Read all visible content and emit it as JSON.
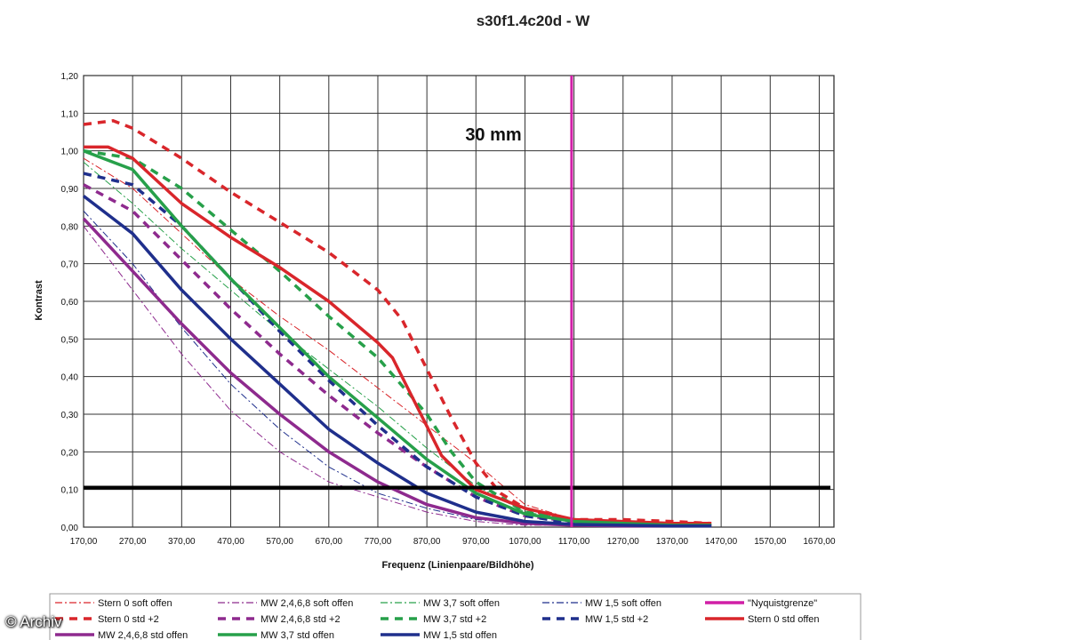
{
  "chart_data": {
    "type": "line",
    "title": "s30f1.4c20d - W",
    "annotation": "30 mm",
    "xlabel": "Frequenz (Linienpaare/Bildhöhe)",
    "ylabel": "Kontrast",
    "xlim": [
      170,
      1700
    ],
    "ylim": [
      0,
      1.2
    ],
    "x_ticks": [
      "170,00",
      "270,00",
      "370,00",
      "470,00",
      "570,00",
      "670,00",
      "770,00",
      "870,00",
      "970,00",
      "1070,00",
      "1170,00",
      "1270,00",
      "1370,00",
      "1470,00",
      "1570,00",
      "1670,00"
    ],
    "y_ticks": [
      "0,00",
      "0,10",
      "0,20",
      "0,30",
      "0,40",
      "0,50",
      "0,60",
      "0,70",
      "0,80",
      "0,90",
      "1,00",
      "1,10",
      "1,20"
    ],
    "grid": true,
    "legend_position": "bottom",
    "reference_lines": [
      {
        "orientation": "vertical",
        "name": "\"Nyquistgrenze\"",
        "x": 1165,
        "color": "#d01fa6"
      },
      {
        "orientation": "horizontal",
        "y": 0.105,
        "color": "#000000"
      }
    ],
    "series": [
      {
        "name": "Stern 0 soft offen",
        "color": "#d9262b",
        "style": "dashdot",
        "width": 1,
        "x": [
          170,
          270,
          370,
          470,
          570,
          670,
          770,
          870,
          970,
          1070,
          1170,
          1270,
          1370,
          1450
        ],
        "y": [
          0.98,
          0.9,
          0.78,
          0.66,
          0.56,
          0.47,
          0.37,
          0.27,
          0.17,
          0.06,
          0.02,
          0.01,
          0.005,
          0.005
        ]
      },
      {
        "name": "MW 2,4,6,8 soft offen",
        "color": "#8e2a8e",
        "style": "dashdot",
        "width": 1,
        "x": [
          170,
          270,
          370,
          470,
          570,
          670,
          770,
          870,
          970,
          1070,
          1170,
          1270,
          1370,
          1450
        ],
        "y": [
          0.8,
          0.63,
          0.46,
          0.31,
          0.2,
          0.12,
          0.08,
          0.04,
          0.015,
          0.005,
          0.005,
          0.003,
          0.003,
          0.003
        ]
      },
      {
        "name": "MW 3,7 soft offen",
        "color": "#27a04a",
        "style": "dashdot",
        "width": 1,
        "x": [
          170,
          270,
          370,
          470,
          570,
          670,
          770,
          870,
          970,
          1070,
          1170,
          1270,
          1370,
          1450
        ],
        "y": [
          0.97,
          0.86,
          0.74,
          0.63,
          0.52,
          0.42,
          0.32,
          0.21,
          0.11,
          0.04,
          0.02,
          0.01,
          0.005,
          0.005
        ]
      },
      {
        "name": "MW 1,5 soft offen",
        "color": "#1f2f8c",
        "style": "dashdot",
        "width": 1,
        "x": [
          170,
          270,
          370,
          470,
          570,
          670,
          770,
          870,
          970,
          1070,
          1170,
          1270,
          1370,
          1450
        ],
        "y": [
          0.84,
          0.7,
          0.53,
          0.38,
          0.26,
          0.16,
          0.09,
          0.05,
          0.02,
          0.01,
          0.005,
          0.003,
          0.003,
          0.003
        ]
      },
      {
        "name": "\"Nyquistgrenze\"",
        "color": "#d01fa6",
        "style": "solid",
        "width": 3,
        "x": [
          1165,
          1165
        ],
        "y": [
          0,
          1.2
        ]
      },
      {
        "name": "Stern 0 std +2",
        "color": "#d9262b",
        "style": "dashed",
        "width": 3.5,
        "x": [
          170,
          230,
          270,
          370,
          470,
          570,
          670,
          770,
          820,
          870,
          920,
          970,
          1020,
          1070,
          1120,
          1170,
          1270,
          1370,
          1450
        ],
        "y": [
          1.07,
          1.08,
          1.06,
          0.98,
          0.89,
          0.81,
          0.73,
          0.63,
          0.55,
          0.42,
          0.29,
          0.17,
          0.09,
          0.05,
          0.03,
          0.02,
          0.02,
          0.015,
          0.01
        ]
      },
      {
        "name": "MW 2,4,6,8 std +2",
        "color": "#8e2a8e",
        "style": "dashed",
        "width": 3.5,
        "x": [
          170,
          270,
          370,
          470,
          570,
          670,
          770,
          870,
          970,
          1070,
          1170,
          1270,
          1370,
          1450
        ],
        "y": [
          0.91,
          0.84,
          0.71,
          0.58,
          0.46,
          0.35,
          0.25,
          0.16,
          0.08,
          0.03,
          0.015,
          0.01,
          0.005,
          0.005
        ]
      },
      {
        "name": "MW 3,7 std +2",
        "color": "#27a04a",
        "style": "dashed",
        "width": 3.5,
        "x": [
          170,
          270,
          370,
          470,
          570,
          670,
          770,
          870,
          920,
          970,
          1070,
          1170,
          1270,
          1370,
          1450
        ],
        "y": [
          1.0,
          0.98,
          0.9,
          0.79,
          0.68,
          0.56,
          0.45,
          0.3,
          0.2,
          0.12,
          0.04,
          0.02,
          0.01,
          0.005,
          0.005
        ]
      },
      {
        "name": "MW 1,5 std +2",
        "color": "#1f2f8c",
        "style": "dashed",
        "width": 3.5,
        "x": [
          170,
          270,
          370,
          470,
          570,
          670,
          770,
          870,
          970,
          1070,
          1170,
          1270,
          1370,
          1450
        ],
        "y": [
          0.94,
          0.91,
          0.8,
          0.66,
          0.52,
          0.39,
          0.27,
          0.16,
          0.08,
          0.03,
          0.01,
          0.005,
          0.005,
          0.005
        ]
      },
      {
        "name": "Stern 0 std offen",
        "color": "#d9262b",
        "style": "solid",
        "width": 3.5,
        "x": [
          170,
          220,
          270,
          370,
          470,
          570,
          670,
          770,
          800,
          850,
          900,
          970,
          1070,
          1170,
          1270,
          1370,
          1450
        ],
        "y": [
          1.01,
          1.01,
          0.98,
          0.86,
          0.77,
          0.69,
          0.6,
          0.49,
          0.45,
          0.32,
          0.19,
          0.1,
          0.05,
          0.02,
          0.015,
          0.01,
          0.01
        ]
      },
      {
        "name": "MW 2,4,6,8 std offen",
        "color": "#8e2a8e",
        "style": "solid",
        "width": 3.5,
        "x": [
          170,
          270,
          370,
          470,
          570,
          670,
          770,
          870,
          970,
          1070,
          1170,
          1270,
          1370,
          1450
        ],
        "y": [
          0.82,
          0.68,
          0.54,
          0.41,
          0.3,
          0.2,
          0.12,
          0.06,
          0.025,
          0.01,
          0.005,
          0.003,
          0.003,
          0.003
        ]
      },
      {
        "name": "MW 3,7 std offen",
        "color": "#27a04a",
        "style": "solid",
        "width": 3.5,
        "x": [
          170,
          270,
          370,
          470,
          570,
          670,
          770,
          870,
          970,
          1070,
          1170,
          1270,
          1370,
          1450
        ],
        "y": [
          1.0,
          0.95,
          0.8,
          0.66,
          0.53,
          0.4,
          0.29,
          0.18,
          0.09,
          0.035,
          0.015,
          0.01,
          0.005,
          0.005
        ]
      },
      {
        "name": "MW 1,5 std offen",
        "color": "#1f2f8c",
        "style": "solid",
        "width": 3.5,
        "x": [
          170,
          270,
          370,
          470,
          570,
          670,
          770,
          870,
          970,
          1070,
          1170,
          1270,
          1370,
          1450
        ],
        "y": [
          0.88,
          0.78,
          0.63,
          0.5,
          0.38,
          0.26,
          0.17,
          0.09,
          0.04,
          0.015,
          0.007,
          0.005,
          0.003,
          0.003
        ]
      }
    ]
  },
  "watermark": "© Archiv"
}
